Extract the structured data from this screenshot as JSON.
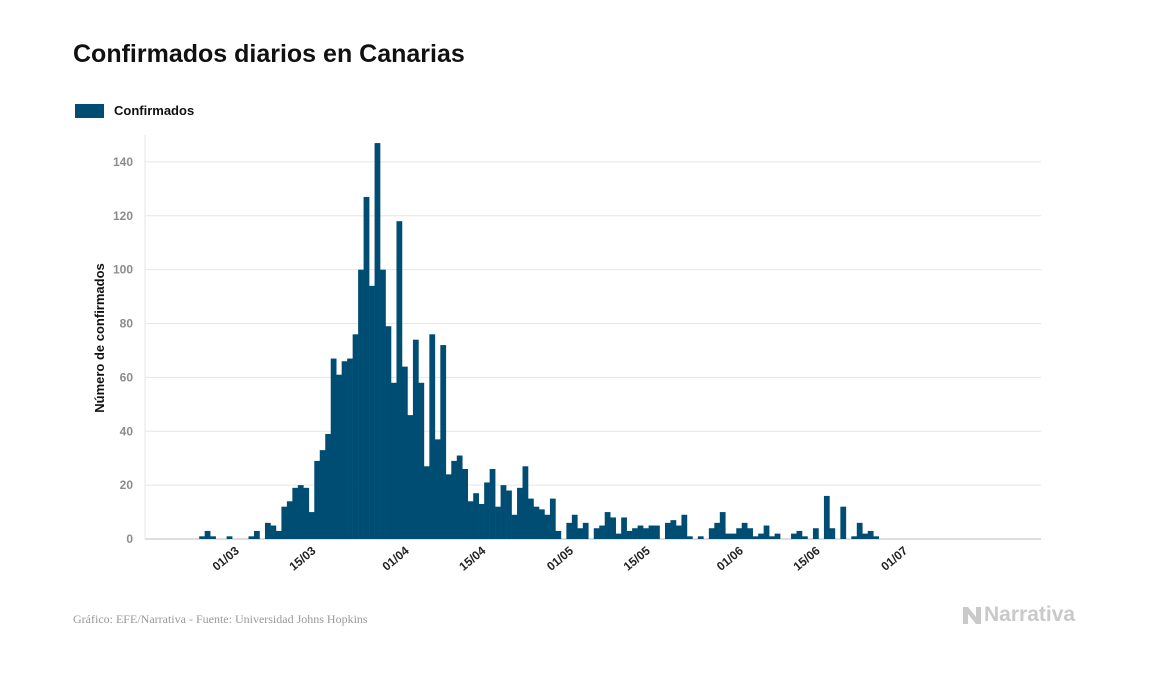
{
  "colors": {
    "bar": "#004d73",
    "grid": "#e6e6e6",
    "tick": "#8c8c8c"
  },
  "chart_data": {
    "type": "bar",
    "title": "Confirmados diarios en Canarias",
    "ylabel": "Número de confirmados",
    "xlabel": "",
    "ylim": [
      0,
      150
    ],
    "yticks": [
      0,
      20,
      40,
      60,
      80,
      100,
      120,
      140
    ],
    "xtick_labels": [
      "01/03",
      "15/03",
      "01/04",
      "15/04",
      "01/05",
      "15/05",
      "01/06",
      "15/06",
      "01/07"
    ],
    "legend": {
      "position": "top-left"
    },
    "grid": true,
    "series": [
      {
        "name": "Confirmados",
        "start_date": "2020-02-21",
        "values": [
          0,
          0,
          0,
          1,
          3,
          1,
          0,
          0,
          1,
          0,
          0,
          0,
          1,
          3,
          0,
          6,
          5,
          3,
          12,
          14,
          19,
          20,
          19,
          10,
          29,
          33,
          39,
          67,
          61,
          66,
          67,
          76,
          100,
          127,
          94,
          147,
          100,
          79,
          58,
          118,
          64,
          46,
          74,
          58,
          27,
          76,
          37,
          72,
          24,
          29,
          31,
          26,
          14,
          17,
          13,
          21,
          26,
          12,
          20,
          18,
          9,
          19,
          27,
          15,
          12,
          11,
          9,
          15,
          3,
          0,
          6,
          9,
          4,
          6,
          0,
          4,
          5,
          10,
          8,
          2,
          8,
          3,
          4,
          5,
          4,
          5,
          5,
          0,
          6,
          7,
          5,
          9,
          1,
          0,
          1,
          0,
          4,
          6,
          10,
          2,
          2,
          4,
          6,
          4,
          1,
          2,
          5,
          1,
          2,
          0,
          0,
          2,
          3,
          1,
          0,
          4,
          0,
          16,
          4,
          0,
          12,
          0,
          1,
          6,
          2,
          3,
          1,
          0,
          0,
          0,
          0,
          0
        ]
      }
    ]
  },
  "legend_label": "Confirmados",
  "footer": "Gráfico: EFE/Narrativa - Fuente: Universidad Johns Hopkins",
  "brand": {
    "name": "Narrativa",
    "icon": "narrativa-logo-icon"
  }
}
